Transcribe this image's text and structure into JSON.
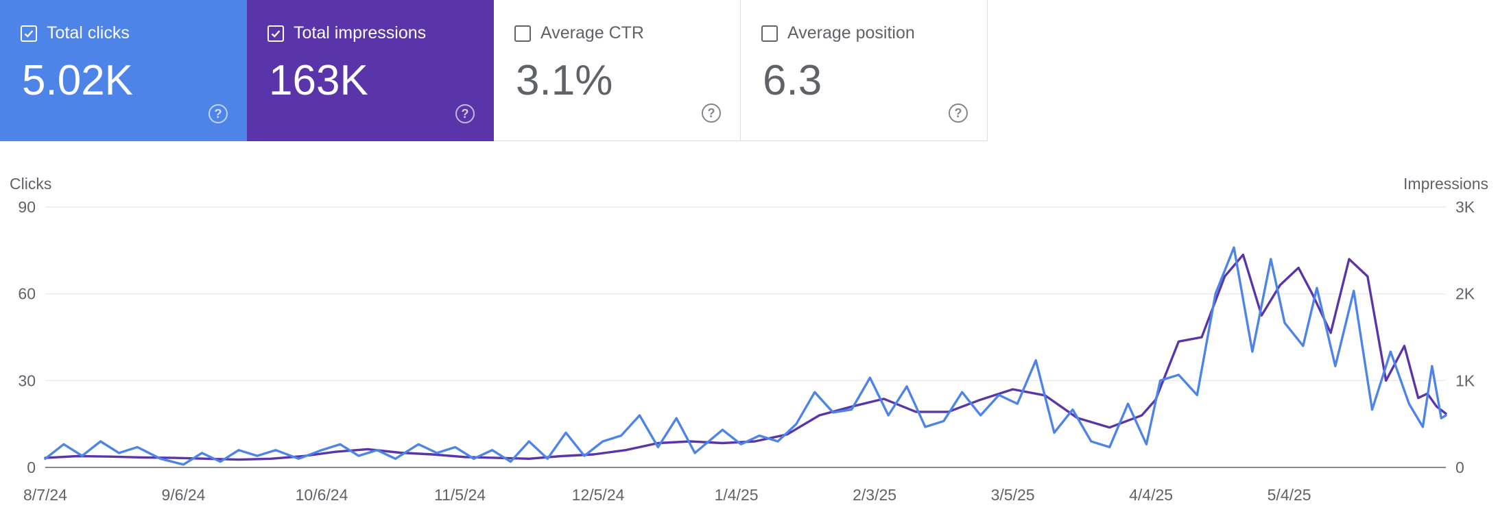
{
  "metrics": [
    {
      "label": "Total clicks",
      "value": "5.02K",
      "selected": true,
      "color": "#4e83e8"
    },
    {
      "label": "Total impressions",
      "value": "163K",
      "selected": true,
      "color": "#5a35a9"
    },
    {
      "label": "Average CTR",
      "value": "3.1%",
      "selected": false,
      "color": "#ffffff"
    },
    {
      "label": "Average position",
      "value": "6.3",
      "selected": false,
      "color": "#ffffff"
    }
  ],
  "chart_data": {
    "type": "line",
    "left_axis": {
      "title": "Clicks",
      "ticks": [
        "0",
        "30",
        "60",
        "90"
      ],
      "range": [
        0,
        90
      ]
    },
    "right_axis": {
      "title": "Impressions",
      "ticks": [
        "0",
        "1K",
        "2K",
        "3K"
      ],
      "range": [
        0,
        3000
      ]
    },
    "x_ticks": [
      "8/7/24",
      "9/6/24",
      "10/6/24",
      "11/5/24",
      "12/5/24",
      "1/4/25",
      "2/3/25",
      "3/5/25",
      "4/4/25",
      "5/4/25"
    ],
    "x_range": [
      "2024-08-07",
      "2025-06-07"
    ],
    "series": [
      {
        "name": "Total impressions",
        "axis": "right",
        "color": "#5a35a9",
        "points": [
          [
            "2024-08-07",
            110
          ],
          [
            "2024-08-14",
            130
          ],
          [
            "2024-08-21",
            125
          ],
          [
            "2024-08-28",
            115
          ],
          [
            "2024-09-04",
            110
          ],
          [
            "2024-09-11",
            100
          ],
          [
            "2024-09-18",
            90
          ],
          [
            "2024-09-25",
            100
          ],
          [
            "2024-10-02",
            130
          ],
          [
            "2024-10-09",
            180
          ],
          [
            "2024-10-16",
            210
          ],
          [
            "2024-10-23",
            170
          ],
          [
            "2024-10-30",
            150
          ],
          [
            "2024-11-06",
            120
          ],
          [
            "2024-11-13",
            110
          ],
          [
            "2024-11-20",
            100
          ],
          [
            "2024-11-27",
            130
          ],
          [
            "2024-12-04",
            150
          ],
          [
            "2024-12-11",
            200
          ],
          [
            "2024-12-18",
            280
          ],
          [
            "2024-12-25",
            300
          ],
          [
            "2025-01-01",
            280
          ],
          [
            "2025-01-08",
            300
          ],
          [
            "2025-01-15",
            380
          ],
          [
            "2025-01-22",
            600
          ],
          [
            "2025-01-29",
            700
          ],
          [
            "2025-02-05",
            790
          ],
          [
            "2025-02-12",
            640
          ],
          [
            "2025-02-19",
            640
          ],
          [
            "2025-02-26",
            780
          ],
          [
            "2025-03-05",
            900
          ],
          [
            "2025-03-12",
            830
          ],
          [
            "2025-03-19",
            570
          ],
          [
            "2025-03-26",
            460
          ],
          [
            "2025-04-02",
            600
          ],
          [
            "2025-04-05",
            780
          ],
          [
            "2025-04-10",
            1450
          ],
          [
            "2025-04-15",
            1500
          ],
          [
            "2025-04-20",
            2200
          ],
          [
            "2025-04-24",
            2450
          ],
          [
            "2025-04-28",
            1750
          ],
          [
            "2025-05-02",
            2100
          ],
          [
            "2025-05-06",
            2300
          ],
          [
            "2025-05-09",
            2000
          ],
          [
            "2025-05-13",
            1550
          ],
          [
            "2025-05-17",
            2400
          ],
          [
            "2025-05-21",
            2200
          ],
          [
            "2025-05-25",
            1000
          ],
          [
            "2025-05-29",
            1400
          ],
          [
            "2025-06-01",
            800
          ],
          [
            "2025-06-03",
            850
          ],
          [
            "2025-06-05",
            700
          ],
          [
            "2025-06-07",
            620
          ]
        ]
      },
      {
        "name": "Total clicks",
        "axis": "left",
        "color": "#4e83e8",
        "points": [
          [
            "2024-08-07",
            3
          ],
          [
            "2024-08-11",
            8
          ],
          [
            "2024-08-15",
            4
          ],
          [
            "2024-08-19",
            9
          ],
          [
            "2024-08-23",
            5
          ],
          [
            "2024-08-27",
            7
          ],
          [
            "2024-09-01",
            3
          ],
          [
            "2024-09-06",
            1
          ],
          [
            "2024-09-10",
            5
          ],
          [
            "2024-09-14",
            2
          ],
          [
            "2024-09-18",
            6
          ],
          [
            "2024-09-22",
            4
          ],
          [
            "2024-09-26",
            6
          ],
          [
            "2024-10-01",
            3
          ],
          [
            "2024-10-06",
            6
          ],
          [
            "2024-10-10",
            8
          ],
          [
            "2024-10-14",
            4
          ],
          [
            "2024-10-18",
            6
          ],
          [
            "2024-10-22",
            3
          ],
          [
            "2024-10-27",
            8
          ],
          [
            "2024-10-31",
            5
          ],
          [
            "2024-11-04",
            7
          ],
          [
            "2024-11-08",
            3
          ],
          [
            "2024-11-12",
            6
          ],
          [
            "2024-11-16",
            2
          ],
          [
            "2024-11-20",
            9
          ],
          [
            "2024-11-24",
            3
          ],
          [
            "2024-11-28",
            12
          ],
          [
            "2024-12-02",
            4
          ],
          [
            "2024-12-06",
            9
          ],
          [
            "2024-12-10",
            11
          ],
          [
            "2024-12-14",
            18
          ],
          [
            "2024-12-18",
            7
          ],
          [
            "2024-12-22",
            17
          ],
          [
            "2024-12-26",
            5
          ],
          [
            "2025-01-01",
            13
          ],
          [
            "2025-01-05",
            8
          ],
          [
            "2025-01-09",
            11
          ],
          [
            "2025-01-13",
            9
          ],
          [
            "2025-01-17",
            15
          ],
          [
            "2025-01-21",
            26
          ],
          [
            "2025-01-25",
            19
          ],
          [
            "2025-01-29",
            20
          ],
          [
            "2025-02-02",
            31
          ],
          [
            "2025-02-06",
            18
          ],
          [
            "2025-02-10",
            28
          ],
          [
            "2025-02-14",
            14
          ],
          [
            "2025-02-18",
            16
          ],
          [
            "2025-02-22",
            26
          ],
          [
            "2025-02-26",
            18
          ],
          [
            "2025-03-02",
            25
          ],
          [
            "2025-03-06",
            22
          ],
          [
            "2025-03-10",
            37
          ],
          [
            "2025-03-14",
            12
          ],
          [
            "2025-03-18",
            20
          ],
          [
            "2025-03-22",
            9
          ],
          [
            "2025-03-26",
            7
          ],
          [
            "2025-03-30",
            22
          ],
          [
            "2025-04-03",
            8
          ],
          [
            "2025-04-06",
            30
          ],
          [
            "2025-04-10",
            32
          ],
          [
            "2025-04-14",
            25
          ],
          [
            "2025-04-18",
            60
          ],
          [
            "2025-04-22",
            76
          ],
          [
            "2025-04-26",
            40
          ],
          [
            "2025-04-30",
            72
          ],
          [
            "2025-05-03",
            50
          ],
          [
            "2025-05-07",
            42
          ],
          [
            "2025-05-10",
            62
          ],
          [
            "2025-05-14",
            35
          ],
          [
            "2025-05-18",
            61
          ],
          [
            "2025-05-22",
            20
          ],
          [
            "2025-05-26",
            40
          ],
          [
            "2025-05-30",
            22
          ],
          [
            "2025-06-02",
            14
          ],
          [
            "2025-06-04",
            35
          ],
          [
            "2025-06-06",
            17
          ],
          [
            "2025-06-07",
            18
          ]
        ]
      }
    ]
  }
}
